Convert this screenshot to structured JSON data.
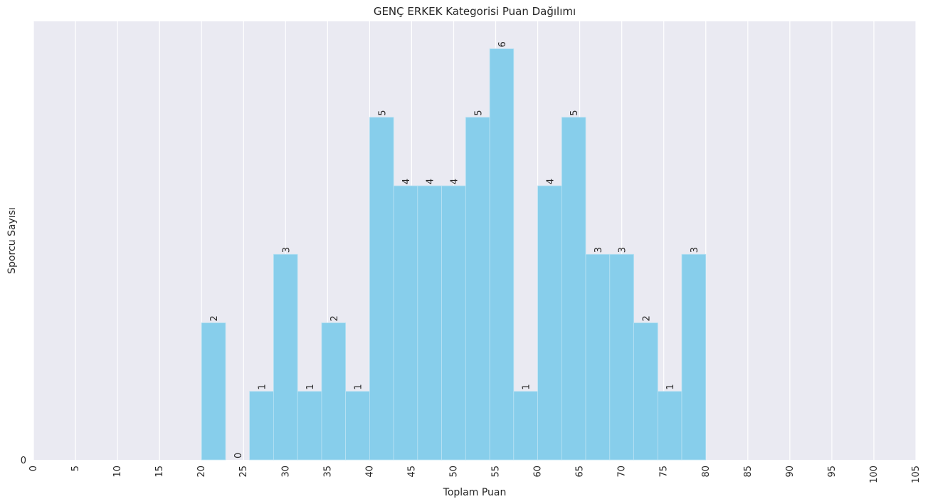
{
  "chart_data": {
    "type": "bar",
    "title": "GENÇ ERKEK Kategorisi Puan Dağılımı",
    "xlabel": "Toplam Puan",
    "ylabel": "Sporcu Sayısı",
    "xlim": [
      0,
      105
    ],
    "ylim": [
      0,
      6.4
    ],
    "x_ticks": [
      "0",
      "5",
      "10",
      "15",
      "20",
      "25",
      "30",
      "35",
      "40",
      "45",
      "50",
      "55",
      "60",
      "65",
      "70",
      "75",
      "80",
      "85",
      "90",
      "95",
      "100",
      "105"
    ],
    "y_ticks": [
      "0"
    ],
    "grid": "vertical",
    "bar_color": "#87CEEB",
    "bins": [
      {
        "start": 20.0,
        "end": 22.86,
        "count": 2
      },
      {
        "start": 22.86,
        "end": 25.71,
        "count": 0
      },
      {
        "start": 25.71,
        "end": 28.57,
        "count": 1
      },
      {
        "start": 28.57,
        "end": 31.43,
        "count": 3
      },
      {
        "start": 31.43,
        "end": 34.29,
        "count": 1
      },
      {
        "start": 34.29,
        "end": 37.14,
        "count": 2
      },
      {
        "start": 37.14,
        "end": 40.0,
        "count": 1
      },
      {
        "start": 40.0,
        "end": 42.86,
        "count": 5
      },
      {
        "start": 42.86,
        "end": 45.71,
        "count": 4
      },
      {
        "start": 45.71,
        "end": 48.57,
        "count": 4
      },
      {
        "start": 48.57,
        "end": 51.43,
        "count": 4
      },
      {
        "start": 51.43,
        "end": 54.29,
        "count": 5
      },
      {
        "start": 54.29,
        "end": 57.14,
        "count": 6
      },
      {
        "start": 57.14,
        "end": 60.0,
        "count": 1
      },
      {
        "start": 60.0,
        "end": 62.86,
        "count": 4
      },
      {
        "start": 62.86,
        "end": 65.71,
        "count": 5
      },
      {
        "start": 65.71,
        "end": 68.57,
        "count": 3
      },
      {
        "start": 68.57,
        "end": 71.43,
        "count": 3
      },
      {
        "start": 71.43,
        "end": 74.29,
        "count": 2
      },
      {
        "start": 74.29,
        "end": 77.14,
        "count": 1
      },
      {
        "start": 77.14,
        "end": 80.0,
        "count": 3
      }
    ]
  }
}
